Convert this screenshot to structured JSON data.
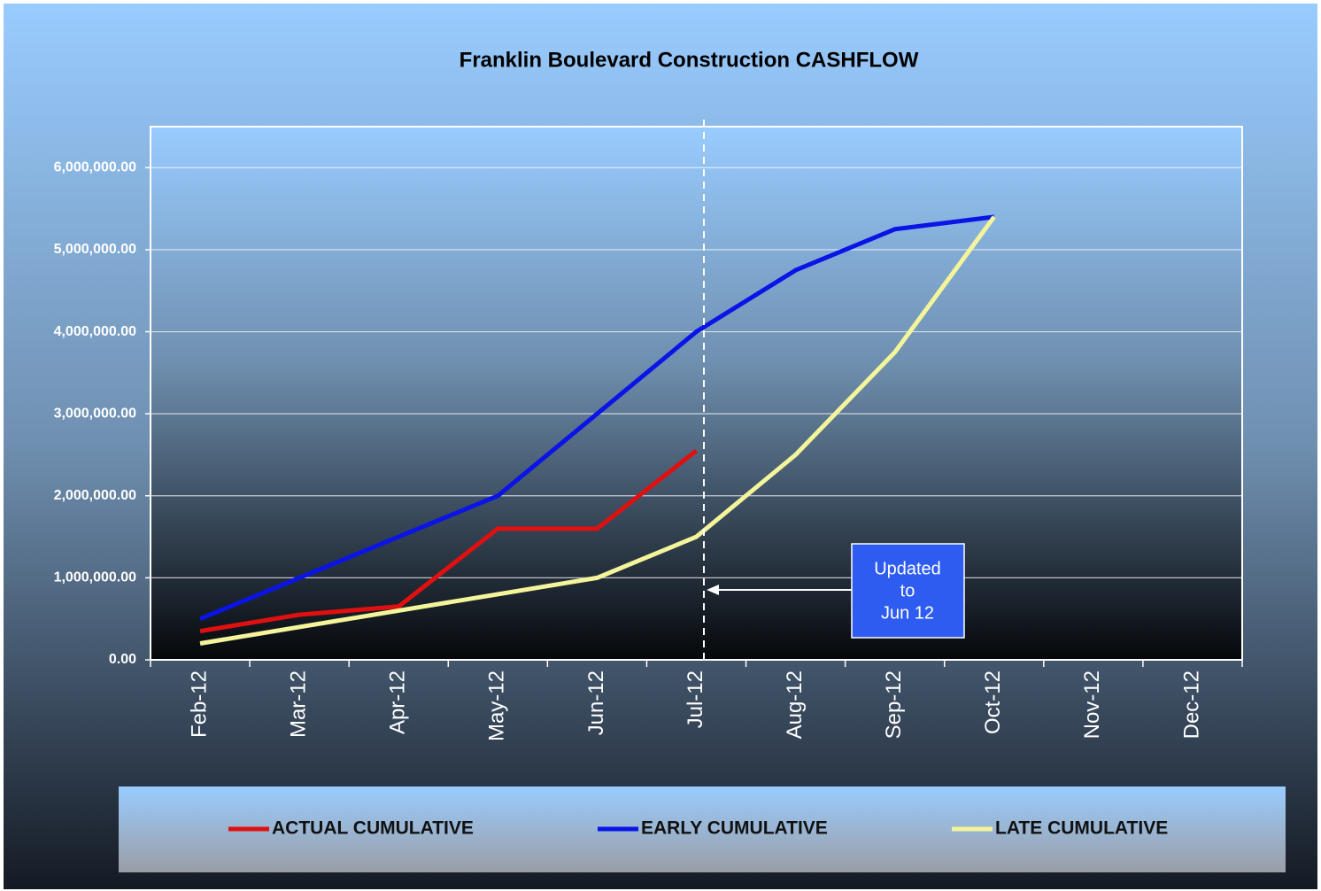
{
  "chart_data": {
    "type": "line",
    "title": "Franklin Boulevard Construction  CASHFLOW",
    "categories": [
      "Feb-12",
      "Mar-12",
      "Apr-12",
      "May-12",
      "Jun-12",
      "Jul-12",
      "Aug-12",
      "Sep-12",
      "Oct-12",
      "Nov-12",
      "Dec-12"
    ],
    "series": [
      {
        "name": "ACTUAL CUMULATIVE",
        "color": "#e01010",
        "values": [
          350000,
          550000,
          650000,
          1600000,
          1600000,
          2550000,
          null,
          null,
          null,
          null,
          null
        ]
      },
      {
        "name": "EARLY CUMULATIVE",
        "color": "#0a14e6",
        "values": [
          500000,
          1000000,
          1500000,
          2000000,
          3000000,
          4000000,
          4750000,
          5250000,
          5400000,
          null,
          null
        ]
      },
      {
        "name": "LATE CUMULATIVE",
        "color": "#f4f49a",
        "values": [
          200000,
          400000,
          600000,
          800000,
          1000000,
          1500000,
          2500000,
          3750000,
          5400000,
          null,
          null
        ]
      }
    ],
    "ylim": [
      0,
      6500000
    ],
    "yticks": [
      {
        "value": 0,
        "label": "0.00"
      },
      {
        "value": 1000000,
        "label": "1,000,000.00"
      },
      {
        "value": 2000000,
        "label": "2,000,000.00"
      },
      {
        "value": 3000000,
        "label": "3,000,000.00"
      },
      {
        "value": 4000000,
        "label": "4,000,000.00"
      },
      {
        "value": 5000000,
        "label": "5,000,000.00"
      },
      {
        "value": 6000000,
        "label": "6,000,000.00"
      }
    ],
    "grid": true,
    "legend": "bottom",
    "annotation": {
      "lines": [
        "Updated",
        "to",
        "Jun 12"
      ]
    }
  }
}
